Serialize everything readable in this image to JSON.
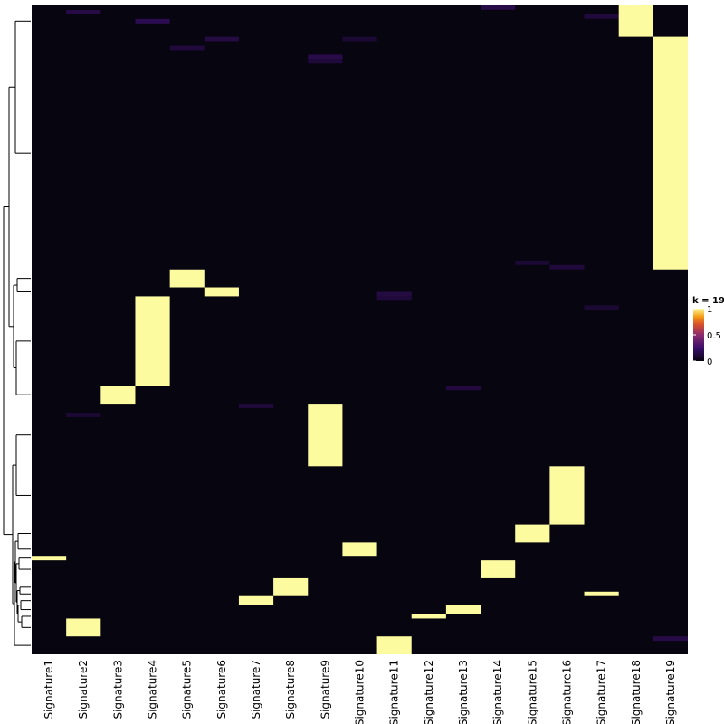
{
  "chart_data": {
    "type": "heatmap",
    "title": "",
    "columns": [
      "Signature1",
      "Signature2",
      "Signature3",
      "Signature4",
      "Signature5",
      "Signature6",
      "Signature7",
      "Signature8",
      "Signature9",
      "Signature10",
      "Signature11",
      "Signature12",
      "Signature13",
      "Signature14",
      "Signature15",
      "Signature16",
      "Signature17",
      "Signature18",
      "Signature19"
    ],
    "n_rows": 145,
    "background_value": 0,
    "high_blocks": [
      {
        "column": "Signature18",
        "row_start": 0,
        "row_end": 6,
        "value": 1
      },
      {
        "column": "Signature19",
        "row_start": 7,
        "row_end": 58,
        "value": 1
      },
      {
        "column": "Signature5",
        "row_start": 59,
        "row_end": 62,
        "value": 1
      },
      {
        "column": "Signature6",
        "row_start": 63,
        "row_end": 64,
        "value": 1
      },
      {
        "column": "Signature4",
        "row_start": 65,
        "row_end": 84,
        "value": 1
      },
      {
        "column": "Signature3",
        "row_start": 85,
        "row_end": 88,
        "value": 1
      },
      {
        "column": "Signature9",
        "row_start": 89,
        "row_end": 102,
        "value": 1
      },
      {
        "column": "Signature16",
        "row_start": 103,
        "row_end": 115,
        "value": 1
      },
      {
        "column": "Signature15",
        "row_start": 116,
        "row_end": 119,
        "value": 1
      },
      {
        "column": "Signature10",
        "row_start": 120,
        "row_end": 122,
        "value": 1
      },
      {
        "column": "Signature1",
        "row_start": 123,
        "row_end": 123,
        "value": 1
      },
      {
        "column": "Signature14",
        "row_start": 124,
        "row_end": 127,
        "value": 1
      },
      {
        "column": "Signature8",
        "row_start": 128,
        "row_end": 131,
        "value": 1
      },
      {
        "column": "Signature17",
        "row_start": 131,
        "row_end": 131,
        "value": 1
      },
      {
        "column": "Signature7",
        "row_start": 132,
        "row_end": 133,
        "value": 1
      },
      {
        "column": "Signature13",
        "row_start": 134,
        "row_end": 135,
        "value": 1
      },
      {
        "column": "Signature12",
        "row_start": 136,
        "row_end": 136,
        "value": 1
      },
      {
        "column": "Signature2",
        "row_start": 137,
        "row_end": 140,
        "value": 1
      },
      {
        "column": "Signature11",
        "row_start": 141,
        "row_end": 144,
        "value": 1
      }
    ],
    "faint_cells": [
      {
        "column": "Signature2",
        "row": 1,
        "value": 0.15
      },
      {
        "column": "Signature4",
        "row": 3,
        "value": 0.18
      },
      {
        "column": "Signature5",
        "row": 9,
        "value": 0.12
      },
      {
        "column": "Signature6",
        "row": 7,
        "value": 0.14
      },
      {
        "column": "Signature9",
        "row": 11,
        "value": 0.16
      },
      {
        "column": "Signature9",
        "row": 12,
        "value": 0.12
      },
      {
        "column": "Signature10",
        "row": 7,
        "value": 0.1
      },
      {
        "column": "Signature14",
        "row": 0,
        "value": 0.15
      },
      {
        "column": "Signature17",
        "row": 2,
        "value": 0.12
      },
      {
        "column": "Signature11",
        "row": 64,
        "value": 0.14
      },
      {
        "column": "Signature11",
        "row": 65,
        "value": 0.12
      },
      {
        "column": "Signature13",
        "row": 85,
        "value": 0.13
      },
      {
        "column": "Signature7",
        "row": 89,
        "value": 0.12
      },
      {
        "column": "Signature19",
        "row": 141,
        "value": 0.15
      },
      {
        "column": "Signature15",
        "row": 57,
        "value": 0.1
      },
      {
        "column": "Signature16",
        "row": 58,
        "value": 0.12
      },
      {
        "column": "Signature2",
        "row": 91,
        "value": 0.1
      },
      {
        "column": "Signature17",
        "row": 67,
        "value": 0.1
      }
    ],
    "color_scale": {
      "name": "inferno-like",
      "stops": [
        {
          "value": 0,
          "color": "#07050f"
        },
        {
          "value": 0.25,
          "color": "#3a0f6a"
        },
        {
          "value": 0.5,
          "color": "#8c2a6e"
        },
        {
          "value": 0.7,
          "color": "#d8502b"
        },
        {
          "value": 0.85,
          "color": "#f59d16"
        },
        {
          "value": 1,
          "color": "#fcfba0"
        }
      ]
    },
    "legend": {
      "title": "k = 19",
      "ticks": [
        "1",
        "0.5",
        "0"
      ],
      "tick_values": [
        1,
        0.5,
        0
      ],
      "placement": "right"
    },
    "dendrogram": "rows, left side"
  }
}
